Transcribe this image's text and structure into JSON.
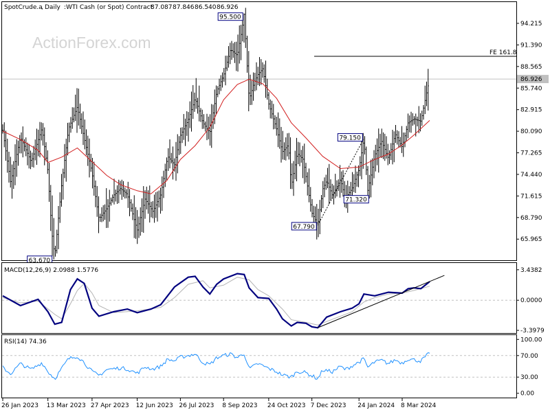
{
  "header": {
    "symbol": "SpotCrude.a",
    "timeframe": "Daily",
    "description": "WTI Cash (or Spot) Contract",
    "ohlc": [
      "87.087",
      "87.846",
      "86.540",
      "86.926"
    ]
  },
  "watermark": "ActionForex.com",
  "colors": {
    "price_bars": "#000000",
    "moving_average": "#d21f1f",
    "macd_line": "#00007f",
    "signal_line": "#b4b4b4",
    "rsi_line": "#1e90ff",
    "trendline": "#000000",
    "current_price_tag": "#c0c0c0"
  },
  "chart_data": [
    {
      "type": "ohlc",
      "panel": "price",
      "y_ticks": [
        "94.215",
        "91.390",
        "88.565",
        "85.740",
        "82.915",
        "80.090",
        "77.265",
        "74.440",
        "71.615",
        "68.790",
        "65.965"
      ],
      "ylim": [
        63.2,
        97.0
      ],
      "x_ticks": [
        "26 Jan 2023",
        "13 Mar 2023",
        "27 Apr 2023",
        "12 Jun 2023",
        "26 Jul 2023",
        "8 Sep 2023",
        "24 Oct 2023",
        "7 Dec 2023",
        "24 Jan 2024",
        "8 Mar 2024"
      ],
      "current_price": "86.926",
      "fe_level": {
        "label": "FE 161.8",
        "value": 89.9
      },
      "close_path": [
        [
          "26 Jan 2023",
          80.2
        ],
        [
          "3 Feb 2023",
          73.4
        ],
        [
          "13 Feb 2023",
          79.3
        ],
        [
          "24 Feb 2023",
          76.1
        ],
        [
          "7 Mar 2023",
          80.5
        ],
        [
          "13 Mar 2023",
          74.8
        ],
        [
          "17 Mar 2023",
          66.8
        ],
        [
          "20 Mar 2023",
          63.67
        ],
        [
          "27 Mar 2023",
          73.1
        ],
        [
          "3 Apr 2023",
          80.4
        ],
        [
          "12 Apr 2023",
          83.3
        ],
        [
          "19 Apr 2023",
          79.2
        ],
        [
          "27 Apr 2023",
          74.6
        ],
        [
          "4 May 2023",
          68.6
        ],
        [
          "12 May 2023",
          70.0
        ],
        [
          "19 May 2023",
          71.7
        ],
        [
          "26 May 2023",
          72.6
        ],
        [
          "2 Jun 2023",
          71.8
        ],
        [
          "12 Jun 2023",
          67.1
        ],
        [
          "20 Jun 2023",
          71.2
        ],
        [
          "28 Jun 2023",
          69.6
        ],
        [
          "6 Jul 2023",
          71.8
        ],
        [
          "13 Jul 2023",
          76.8
        ],
        [
          "20 Jul 2023",
          75.7
        ],
        [
          "26 Jul 2023",
          79.5
        ],
        [
          "3 Aug 2023",
          81.6
        ],
        [
          "10 Aug 2023",
          84.4
        ],
        [
          "18 Aug 2023",
          81.2
        ],
        [
          "25 Aug 2023",
          79.9
        ],
        [
          "1 Sep 2023",
          85.3
        ],
        [
          "8 Sep 2023",
          87.4
        ],
        [
          "15 Sep 2023",
          90.8
        ],
        [
          "22 Sep 2023",
          90.0
        ],
        [
          "27 Sep 2023",
          93.7
        ],
        [
          "29 Sep 2023",
          95.5
        ],
        [
          "4 Oct 2023",
          84.2
        ],
        [
          "9 Oct 2023",
          86.4
        ],
        [
          "13 Oct 2023",
          87.5
        ],
        [
          "18 Oct 2023",
          88.3
        ],
        [
          "24 Oct 2023",
          83.7
        ],
        [
          "1 Nov 2023",
          80.4
        ],
        [
          "7 Nov 2023",
          77.4
        ],
        [
          "13 Nov 2023",
          78.3
        ],
        [
          "16 Nov 2023",
          72.9
        ],
        [
          "22 Nov 2023",
          77.2
        ],
        [
          "28 Nov 2023",
          76.4
        ],
        [
          "1 Dec 2023",
          74.1
        ],
        [
          "7 Dec 2023",
          69.4
        ],
        [
          "13 Dec 2023",
          67.79
        ],
        [
          "18 Dec 2023",
          72.5
        ],
        [
          "22 Dec 2023",
          73.6
        ],
        [
          "28 Dec 2023",
          71.7
        ],
        [
          "5 Jan 2024",
          73.8
        ],
        [
          "10 Jan 2024",
          71.32
        ],
        [
          "17 Jan 2024",
          72.6
        ],
        [
          "24 Jan 2024",
          75.1
        ],
        [
          "29 Jan 2024",
          79.15
        ],
        [
          "2 Feb 2024",
          72.3
        ],
        [
          "9 Feb 2024",
          76.9
        ],
        [
          "16 Feb 2024",
          78.8
        ],
        [
          "23 Feb 2024",
          76.5
        ],
        [
          "1 Mar 2024",
          79.7
        ],
        [
          "8 Mar 2024",
          78.0
        ],
        [
          "14 Mar 2024",
          81.2
        ],
        [
          "20 Mar 2024",
          81.7
        ],
        [
          "27 Mar 2024",
          81.4
        ],
        [
          "2 Apr 2024",
          85.2
        ],
        [
          "5 Apr 2024",
          86.926
        ]
      ],
      "moving_average": [
        [
          "26 Jan 2023",
          80.1
        ],
        [
          "13 Feb 2023",
          79.0
        ],
        [
          "3 Mar 2023",
          77.6
        ],
        [
          "13 Mar 2023",
          76.0
        ],
        [
          "27 Mar 2023",
          76.7
        ],
        [
          "12 Apr 2023",
          77.9
        ],
        [
          "27 Apr 2023",
          76.1
        ],
        [
          "12 May 2023",
          74.3
        ],
        [
          "26 May 2023",
          73.1
        ],
        [
          "12 Jun 2023",
          72.3
        ],
        [
          "26 Jun 2023",
          71.9
        ],
        [
          "12 Jul 2023",
          73.6
        ],
        [
          "26 Jul 2023",
          76.4
        ],
        [
          "10 Aug 2023",
          78.2
        ],
        [
          "25 Aug 2023",
          80.6
        ],
        [
          "8 Sep 2023",
          84.2
        ],
        [
          "22 Sep 2023",
          86.2
        ],
        [
          "4 Oct 2023",
          86.9
        ],
        [
          "18 Oct 2023",
          86.3
        ],
        [
          "1 Nov 2023",
          84.4
        ],
        [
          "16 Nov 2023",
          81.2
        ],
        [
          "1 Dec 2023",
          79.2
        ],
        [
          "18 Dec 2023",
          76.8
        ],
        [
          "5 Jan 2024",
          75.2
        ],
        [
          "24 Jan 2024",
          75.4
        ],
        [
          "9 Feb 2024",
          76.4
        ],
        [
          "23 Feb 2024",
          77.1
        ],
        [
          "8 Mar 2024",
          78.3
        ],
        [
          "20 Mar 2024",
          79.6
        ],
        [
          "5 Apr 2024",
          81.5
        ]
      ],
      "annotations": [
        {
          "text": "95.500",
          "x": "29 Sep 2023",
          "y": 95.5
        },
        {
          "text": "63.670",
          "x": "20 Mar 2023",
          "y": 63.67
        },
        {
          "text": "67.790",
          "x": "13 Dec 2023",
          "y": 67.79
        },
        {
          "text": "79.150",
          "x": "29 Jan 2024",
          "y": 79.15
        },
        {
          "text": "71.320",
          "x": "10 Jan 2024",
          "y": 71.32
        }
      ],
      "dotted_segment": {
        "from": [
          "13 Dec 2023",
          67.79
        ],
        "to": [
          "29 Jan 2024",
          79.15
        ]
      }
    },
    {
      "type": "line",
      "panel": "macd",
      "title": "MACD(12,26,9) 2.0988 1.5776",
      "y_ticks": [
        "3.4382",
        "0.0000",
        "-3.3979"
      ],
      "ylim": [
        -3.7,
        4.2
      ],
      "macd": [
        [
          "26 Jan 2023",
          0.5
        ],
        [
          "13 Feb 2023",
          -0.6
        ],
        [
          "3 Mar 2023",
          0.1
        ],
        [
          "13 Mar 2023",
          -1.3
        ],
        [
          "20 Mar 2023",
          -2.7
        ],
        [
          "27 Mar 2023",
          -2.5
        ],
        [
          "5 Apr 2023",
          1.2
        ],
        [
          "12 Apr 2023",
          2.4
        ],
        [
          "19 Apr 2023",
          1.9
        ],
        [
          "27 Apr 2023",
          -0.9
        ],
        [
          "4 May 2023",
          -1.8
        ],
        [
          "19 May 2023",
          -1.3
        ],
        [
          "2 Jun 2023",
          -1.0
        ],
        [
          "12 Jun 2023",
          -1.4
        ],
        [
          "26 Jun 2023",
          -1.0
        ],
        [
          "6 Jul 2023",
          -0.5
        ],
        [
          "20 Jul 2023",
          1.5
        ],
        [
          "3 Aug 2023",
          2.6
        ],
        [
          "10 Aug 2023",
          2.7
        ],
        [
          "18 Aug 2023",
          1.5
        ],
        [
          "25 Aug 2023",
          0.7
        ],
        [
          "1 Sep 2023",
          1.8
        ],
        [
          "8 Sep 2023",
          2.4
        ],
        [
          "22 Sep 2023",
          3.0
        ],
        [
          "29 Sep 2023",
          2.9
        ],
        [
          "4 Oct 2023",
          1.4
        ],
        [
          "13 Oct 2023",
          0.3
        ],
        [
          "24 Oct 2023",
          0.2
        ],
        [
          "1 Nov 2023",
          -1.0
        ],
        [
          "7 Nov 2023",
          -2.1
        ],
        [
          "16 Nov 2023",
          -2.9
        ],
        [
          "22 Nov 2023",
          -2.5
        ],
        [
          "1 Dec 2023",
          -2.6
        ],
        [
          "7 Dec 2023",
          -3.0
        ],
        [
          "13 Dec 2023",
          -3.1
        ],
        [
          "22 Dec 2023",
          -1.9
        ],
        [
          "5 Jan 2024",
          -1.3
        ],
        [
          "17 Jan 2024",
          -0.9
        ],
        [
          "24 Jan 2024",
          -0.4
        ],
        [
          "29 Jan 2024",
          0.7
        ],
        [
          "9 Feb 2024",
          0.5
        ],
        [
          "23 Feb 2024",
          0.9
        ],
        [
          "8 Mar 2024",
          0.8
        ],
        [
          "14 Mar 2024",
          1.3
        ],
        [
          "20 Mar 2024",
          1.4
        ],
        [
          "27 Mar 2024",
          1.3
        ],
        [
          "5 Apr 2024",
          2.1
        ]
      ],
      "signal": [
        [
          "26 Jan 2023",
          0.3
        ],
        [
          "13 Feb 2023",
          -0.3
        ],
        [
          "3 Mar 2023",
          -0.1
        ],
        [
          "20 Mar 2023",
          -1.6
        ],
        [
          "27 Mar 2023",
          -2.1
        ],
        [
          "5 Apr 2023",
          -0.4
        ],
        [
          "12 Apr 2023",
          1.1
        ],
        [
          "19 Apr 2023",
          1.9
        ],
        [
          "27 Apr 2023",
          0.8
        ],
        [
          "4 May 2023",
          -0.6
        ],
        [
          "19 May 2023",
          -1.4
        ],
        [
          "12 Jun 2023",
          -1.2
        ],
        [
          "6 Jul 2023",
          -0.8
        ],
        [
          "20 Jul 2023",
          0.3
        ],
        [
          "3 Aug 2023",
          1.8
        ],
        [
          "18 Aug 2023",
          2.2
        ],
        [
          "25 Aug 2023",
          1.4
        ],
        [
          "8 Sep 2023",
          1.7
        ],
        [
          "22 Sep 2023",
          2.6
        ],
        [
          "4 Oct 2023",
          2.3
        ],
        [
          "13 Oct 2023",
          1.2
        ],
        [
          "24 Oct 2023",
          0.5
        ],
        [
          "7 Nov 2023",
          -1.0
        ],
        [
          "16 Nov 2023",
          -2.2
        ],
        [
          "1 Dec 2023",
          -2.5
        ],
        [
          "13 Dec 2023",
          -2.8
        ],
        [
          "22 Dec 2023",
          -2.4
        ],
        [
          "17 Jan 2024",
          -1.3
        ],
        [
          "29 Jan 2024",
          -0.2
        ],
        [
          "9 Feb 2024",
          0.3
        ],
        [
          "23 Feb 2024",
          0.7
        ],
        [
          "8 Mar 2024",
          0.8
        ],
        [
          "20 Mar 2024",
          1.1
        ],
        [
          "5 Apr 2024",
          1.58
        ]
      ],
      "trendline": {
        "from": [
          "13 Dec 2023",
          -3.1
        ],
        "to": [
          "20 Apr 2024",
          2.8
        ]
      }
    },
    {
      "type": "line",
      "panel": "rsi",
      "title": "RSI(14) 74.36",
      "y_ticks": [
        "100.00",
        "70.00",
        "30.00",
        "0.00"
      ],
      "ylim": [
        0,
        100
      ],
      "levels": [
        70,
        30
      ],
      "values": [
        [
          "26 Jan 2023",
          48
        ],
        [
          "3 Feb 2023",
          36
        ],
        [
          "13 Feb 2023",
          55
        ],
        [
          "24 Feb 2023",
          44
        ],
        [
          "7 Mar 2023",
          57
        ],
        [
          "13 Mar 2023",
          40
        ],
        [
          "20 Mar 2023",
          27
        ],
        [
          "27 Mar 2023",
          46
        ],
        [
          "3 Apr 2023",
          64
        ],
        [
          "12 Apr 2023",
          69
        ],
        [
          "19 Apr 2023",
          57
        ],
        [
          "27 Apr 2023",
          40
        ],
        [
          "4 May 2023",
          33
        ],
        [
          "12 May 2023",
          44
        ],
        [
          "26 May 2023",
          47
        ],
        [
          "2 Jun 2023",
          45
        ],
        [
          "12 Jun 2023",
          37
        ],
        [
          "20 Jun 2023",
          49
        ],
        [
          "28 Jun 2023",
          45
        ],
        [
          "6 Jul 2023",
          50
        ],
        [
          "13 Jul 2023",
          63
        ],
        [
          "20 Jul 2023",
          60
        ],
        [
          "26 Jul 2023",
          67
        ],
        [
          "3 Aug 2023",
          70
        ],
        [
          "10 Aug 2023",
          73
        ],
        [
          "18 Aug 2023",
          57
        ],
        [
          "25 Aug 2023",
          53
        ],
        [
          "1 Sep 2023",
          66
        ],
        [
          "8 Sep 2023",
          70
        ],
        [
          "15 Sep 2023",
          73
        ],
        [
          "22 Sep 2023",
          66
        ],
        [
          "29 Sep 2023",
          74
        ],
        [
          "4 Oct 2023",
          45
        ],
        [
          "13 Oct 2023",
          55
        ],
        [
          "24 Oct 2023",
          46
        ],
        [
          "1 Nov 2023",
          40
        ],
        [
          "7 Nov 2023",
          34
        ],
        [
          "16 Nov 2023",
          30
        ],
        [
          "22 Nov 2023",
          41
        ],
        [
          "1 Dec 2023",
          38
        ],
        [
          "13 Dec 2023",
          27
        ],
        [
          "18 Dec 2023",
          43
        ],
        [
          "28 Dec 2023",
          40
        ],
        [
          "5 Jan 2024",
          50
        ],
        [
          "10 Jan 2024",
          44
        ],
        [
          "24 Jan 2024",
          58
        ],
        [
          "29 Jan 2024",
          64
        ],
        [
          "2 Feb 2024",
          48
        ],
        [
          "9 Feb 2024",
          58
        ],
        [
          "16 Feb 2024",
          61
        ],
        [
          "23 Feb 2024",
          55
        ],
        [
          "1 Mar 2024",
          62
        ],
        [
          "8 Mar 2024",
          56
        ],
        [
          "14 Mar 2024",
          64
        ],
        [
          "20 Mar 2024",
          62
        ],
        [
          "27 Mar 2024",
          60
        ],
        [
          "2 Apr 2024",
          70
        ],
        [
          "5 Apr 2024",
          74.36
        ]
      ]
    }
  ]
}
